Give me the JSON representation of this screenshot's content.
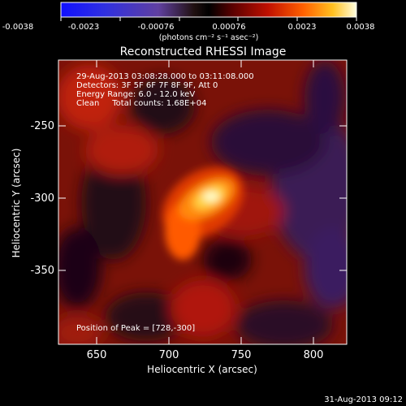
{
  "colorbar": {
    "ticks": [
      "-0.0038",
      "-0.0023",
      "-0.00076",
      "0.00076",
      "0.0023",
      "0.0038"
    ],
    "units": "(photons cm⁻² s⁻¹ asec⁻²)"
  },
  "image_title": "Reconstructed RHESSI Image",
  "annotations": {
    "line1": "29-Aug-2013 03:08:28.000 to 03:11:08.000",
    "line2": "Detectors: 3F 5F 6F 7F 8F 9F, Att 0",
    "line3": "Energy Range: 6.0 - 12.0 keV",
    "line4": "Clean     Total counts: 1.68E+04",
    "peak": "Position of Peak = [728,-300]"
  },
  "axes": {
    "xlabel": "Heliocentric X (arcsec)",
    "ylabel": "Heliocentric Y (arcsec)",
    "xticks": [
      "650",
      "700",
      "750",
      "800"
    ],
    "yticks": [
      "-250",
      "-300",
      "-350"
    ]
  },
  "timestamp": "31-Aug-2013 09:12",
  "colors": {
    "background": "#000000",
    "text": "#ffffff"
  }
}
